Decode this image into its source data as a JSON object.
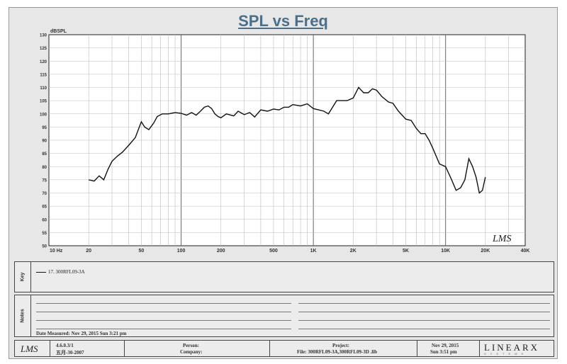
{
  "chart_data": {
    "type": "line",
    "title": "SPL vs Freq",
    "ylabel": "dBSPL",
    "x_scale": "log",
    "xlim": [
      10,
      40000
    ],
    "ylim": [
      50,
      130
    ],
    "x_tick_labels": [
      "10 Hz",
      "20",
      "50",
      "100",
      "200",
      "500",
      "1K",
      "2K",
      "5K",
      "10K",
      "20K",
      "40K"
    ],
    "y_tick_labels": [
      "50",
      "55",
      "60",
      "65",
      "70",
      "75",
      "80",
      "85",
      "90",
      "95",
      "100",
      "105",
      "110",
      "115",
      "120",
      "125",
      "130"
    ],
    "grid": true,
    "watermark": "LMS",
    "series": [
      {
        "name": "17. 300RFL09-3A",
        "x": [
          20,
          22,
          24,
          26,
          28,
          30,
          33,
          36,
          40,
          45,
          50,
          53,
          57,
          62,
          66,
          72,
          80,
          90,
          100,
          110,
          120,
          130,
          140,
          150,
          160,
          170,
          180,
          190,
          200,
          220,
          250,
          270,
          300,
          330,
          360,
          400,
          450,
          500,
          550,
          600,
          650,
          700,
          800,
          900,
          1000,
          1100,
          1200,
          1300,
          1500,
          1800,
          2000,
          2200,
          2400,
          2600,
          2800,
          3000,
          3300,
          3700,
          4000,
          4400,
          5000,
          5500,
          6000,
          6500,
          7000,
          7500,
          8000,
          9000,
          10000,
          11000,
          12000,
          13000,
          14000,
          15000,
          16000,
          17000,
          18000,
          19000,
          20000
        ],
        "y": [
          75,
          74.5,
          76.5,
          75,
          79,
          82,
          84,
          85.5,
          88,
          91,
          97,
          95,
          94,
          96.5,
          99,
          100,
          100,
          100.5,
          100.2,
          99.5,
          100.5,
          99.5,
          101,
          102.5,
          103,
          102,
          100,
          99,
          98.5,
          100,
          99.2,
          101,
          99.7,
          100.5,
          98.8,
          101.5,
          101,
          101.8,
          101.5,
          102.5,
          102.5,
          103.5,
          103,
          103.8,
          102,
          101.5,
          101,
          100,
          105,
          105,
          106,
          110,
          108,
          108,
          109.5,
          109,
          106.5,
          104.5,
          104,
          101,
          98,
          97.5,
          94.5,
          92.5,
          92.5,
          90,
          87,
          81,
          80,
          75.5,
          71,
          72,
          75,
          83,
          80,
          76,
          70,
          71,
          76
        ]
      }
    ]
  },
  "legend": {
    "section_label": "Key",
    "entry": "17. 300RFL09-3A"
  },
  "notes": {
    "section_label": "Notes",
    "date_measured": "Date Measured: Nov 29, 2015  Sun  3:21 pm"
  },
  "footer": {
    "logo": "LMS",
    "version": "4.6.0.3/1",
    "version_date": "五月-30-2007",
    "person_label": "Person:",
    "company_label": "Company:",
    "project_label": "Project:",
    "file_label": "File: 300RFL09-3A,300RFL09-3D .lib",
    "date": "Nov 29, 2015",
    "time": "Sun  3:51 pm",
    "brand": "LINEARX",
    "brand_sub": "SYSTEMS"
  }
}
